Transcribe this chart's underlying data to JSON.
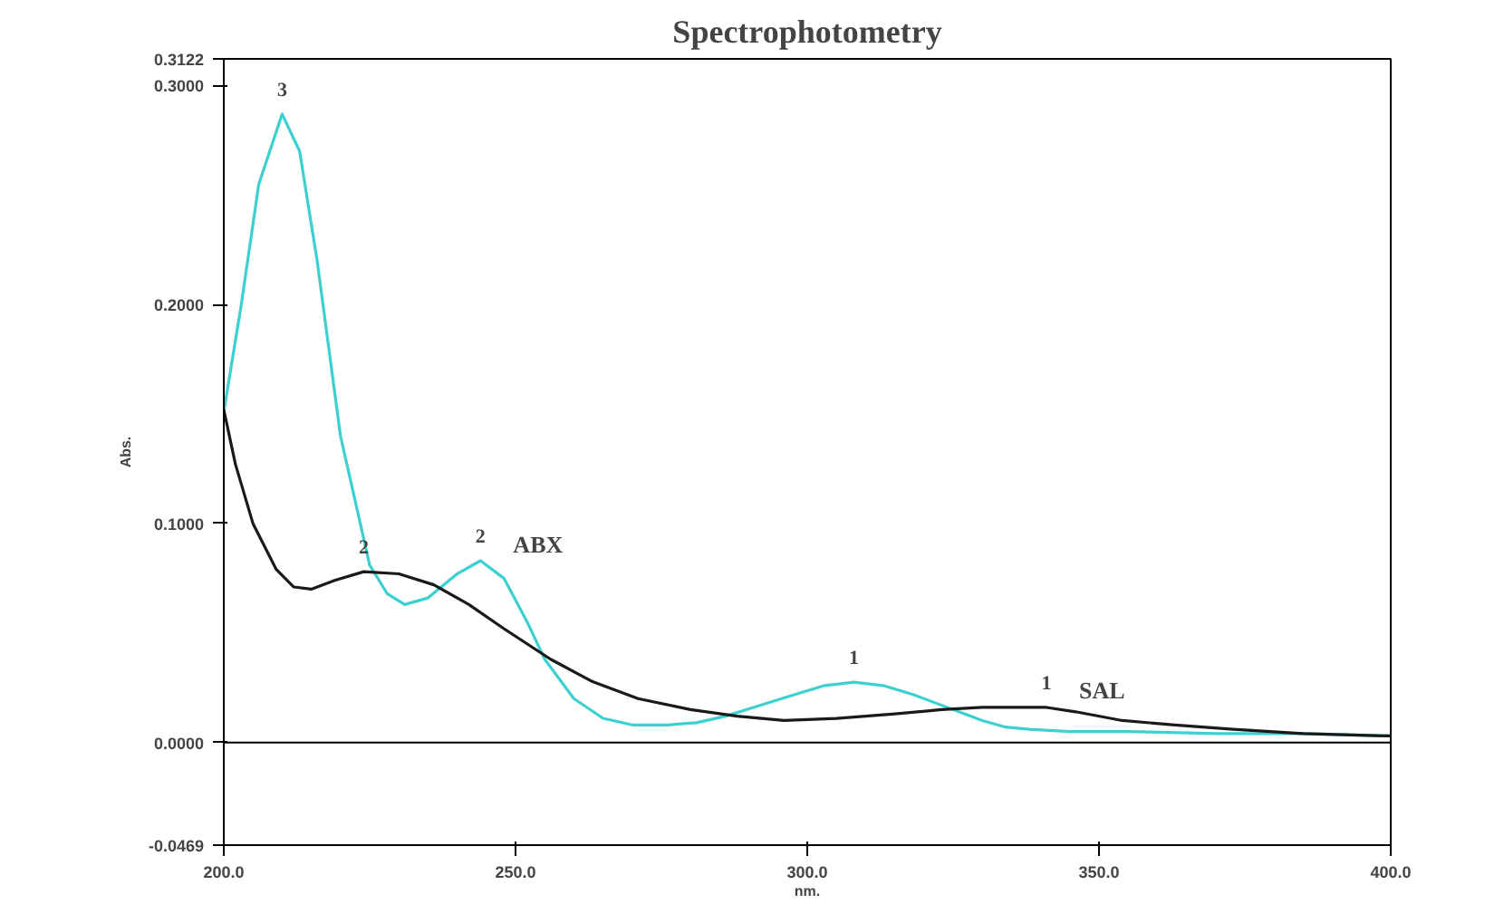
{
  "chart_data": {
    "type": "line",
    "title": "Spectrophotometry",
    "xlabel": "nm.",
    "ylabel": "Abs.",
    "xlim": [
      200,
      400
    ],
    "ylim": [
      -0.0469,
      0.3122
    ],
    "xticks": [
      {
        "value": 200,
        "label": "200.0"
      },
      {
        "value": 250,
        "label": "250.0"
      },
      {
        "value": 300,
        "label": "300.0"
      },
      {
        "value": 350,
        "label": "350.0"
      },
      {
        "value": 400,
        "label": "400.0"
      }
    ],
    "yticks": [
      {
        "value": -0.0469,
        "label": "-0.0469"
      },
      {
        "value": 0,
        "label": "0.0000"
      },
      {
        "value": 0.1,
        "label": "0.1000"
      },
      {
        "value": 0.2,
        "label": "0.2000"
      },
      {
        "value": 0.3,
        "label": "0.3000"
      },
      {
        "value": 0.3122,
        "label": "0.3122"
      }
    ],
    "grid": false,
    "line_style": "solid",
    "series": [
      {
        "color": "#3cd0d0",
        "x": [
          200,
          203,
          206,
          210,
          213,
          216,
          220,
          225,
          228,
          231,
          235,
          240,
          244,
          248,
          252,
          255,
          260,
          265,
          270,
          276,
          281,
          286,
          292,
          298,
          303,
          308,
          313,
          318,
          322,
          326,
          330,
          334,
          338,
          345,
          355,
          370,
          385,
          400
        ],
        "values": [
          0.151,
          0.2,
          0.255,
          0.287,
          0.27,
          0.22,
          0.14,
          0.081,
          0.068,
          0.063,
          0.066,
          0.077,
          0.083,
          0.075,
          0.055,
          0.038,
          0.02,
          0.011,
          0.008,
          0.008,
          0.009,
          0.012,
          0.017,
          0.022,
          0.026,
          0.0275,
          0.026,
          0.022,
          0.018,
          0.014,
          0.01,
          0.007,
          0.006,
          0.005,
          0.005,
          0.004,
          0.004,
          0.003
        ]
      },
      {
        "color": "#1a1a1a",
        "x": [
          200,
          202,
          205,
          209,
          212,
          215,
          219,
          224,
          230,
          236,
          242,
          248,
          256,
          263,
          271,
          280,
          288,
          296,
          305,
          315,
          323,
          330,
          336,
          341,
          346,
          354,
          363,
          373,
          385,
          399,
          400
        ],
        "values": [
          0.152,
          0.127,
          0.1,
          0.079,
          0.071,
          0.07,
          0.074,
          0.078,
          0.077,
          0.072,
          0.063,
          0.052,
          0.038,
          0.028,
          0.02,
          0.015,
          0.012,
          0.01,
          0.011,
          0.013,
          0.015,
          0.016,
          0.016,
          0.016,
          0.014,
          0.01,
          0.008,
          0.006,
          0.004,
          0.003,
          0.003
        ]
      }
    ],
    "ref_lines": [
      {
        "axis": "y",
        "value": 0,
        "color": "#000000"
      }
    ],
    "annotations": [
      {
        "text": "3",
        "x": 210,
        "y": 0.287
      },
      {
        "text": "2",
        "x": 244,
        "y": 0.083
      },
      {
        "text": "1",
        "x": 308,
        "y": 0.0275
      },
      {
        "text": "2",
        "x": 224,
        "y": 0.078
      },
      {
        "text": "1",
        "x": 341,
        "y": 0.016
      },
      {
        "text": "ABX",
        "x": 244,
        "y": 0.0825
      },
      {
        "text": "SAL",
        "x": 341,
        "y": 0.016
      }
    ]
  }
}
